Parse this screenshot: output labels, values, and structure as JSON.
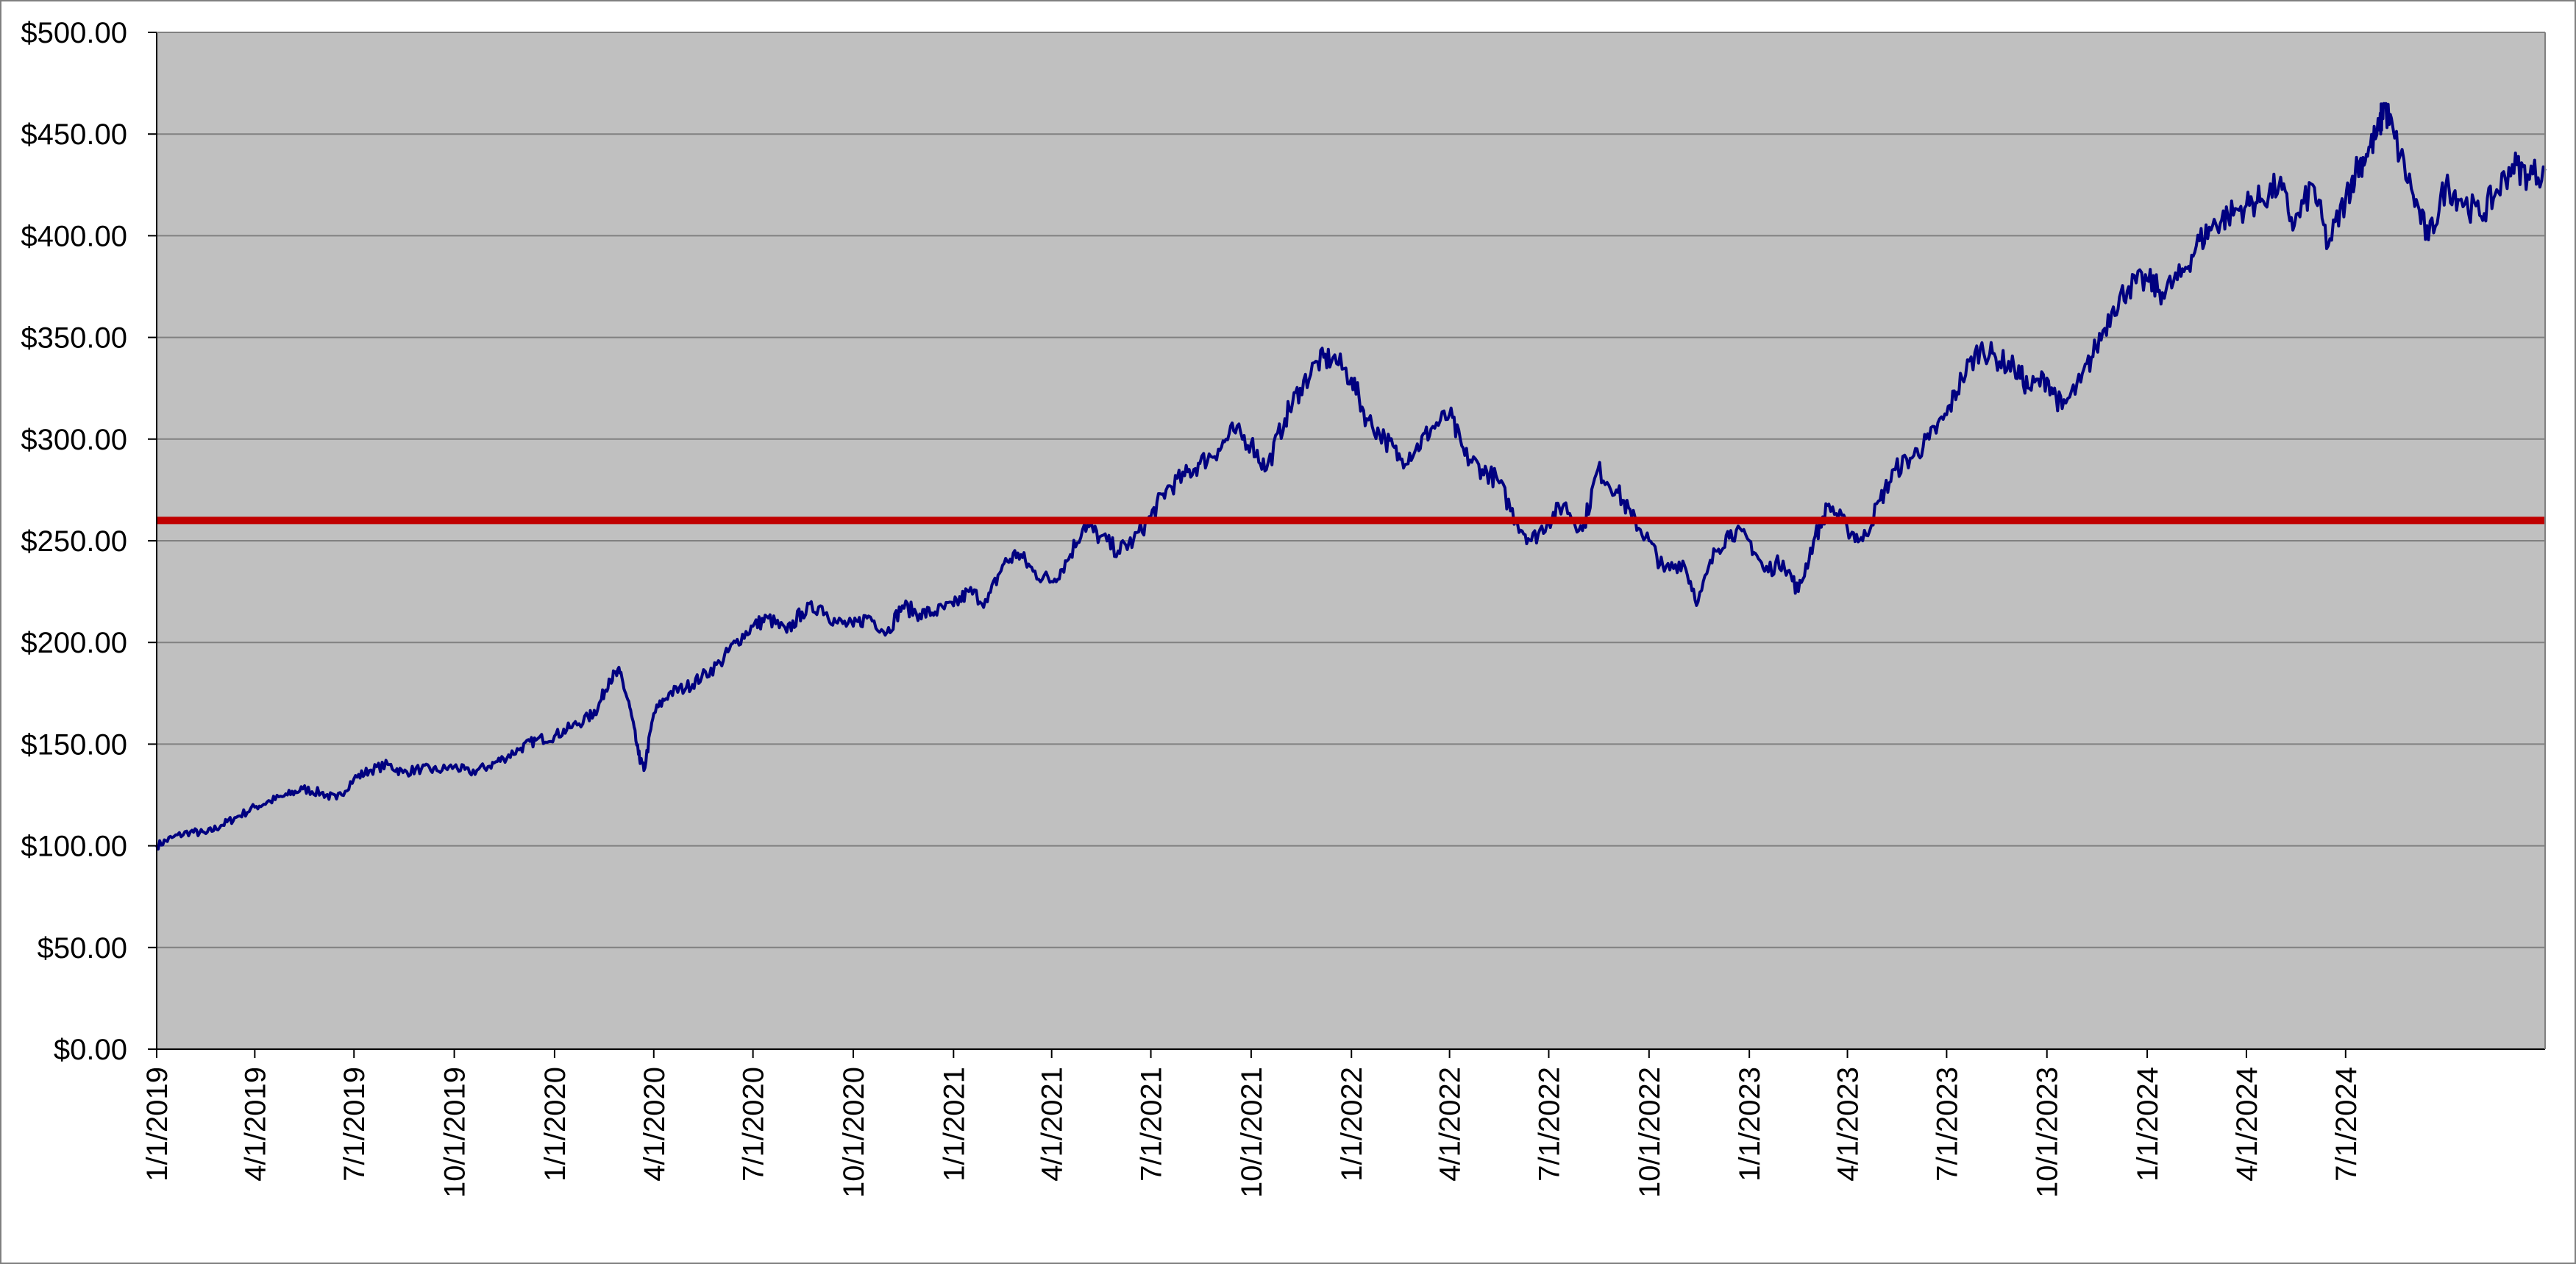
{
  "chart_data": {
    "type": "line",
    "title": "",
    "xlabel": "",
    "ylabel": "",
    "x_range": [
      "1/1/2019",
      "12/31/2024"
    ],
    "ylim": [
      0,
      500
    ],
    "y_ticks": [
      0,
      50,
      100,
      150,
      200,
      250,
      300,
      350,
      400,
      450,
      500
    ],
    "y_tick_labels": [
      "$0.00",
      "$50.00",
      "$100.00",
      "$150.00",
      "$200.00",
      "$250.00",
      "$300.00",
      "$350.00",
      "$400.00",
      "$450.00",
      "$500.00"
    ],
    "x_tick_labels": [
      "1/1/2019",
      "4/1/2019",
      "7/1/2019",
      "10/1/2019",
      "1/1/2020",
      "4/1/2020",
      "7/1/2020",
      "10/1/2020",
      "1/1/2021",
      "4/1/2021",
      "7/1/2021",
      "10/1/2021",
      "1/1/2022",
      "4/1/2022",
      "7/1/2022",
      "10/1/2022",
      "1/1/2023",
      "4/1/2023",
      "7/1/2023",
      "10/1/2023",
      "1/1/2024",
      "4/1/2024",
      "7/1/2024"
    ],
    "grid": true,
    "legend": "none",
    "colors": {
      "plot_background": "#C0C0C0",
      "series": "#000080",
      "reference": "#C00000",
      "gridline": "#808080"
    },
    "series": [
      {
        "x": [
          "2019-01-01",
          "2019-01-15",
          "2019-02-01",
          "2019-02-15",
          "2019-03-01",
          "2019-03-15",
          "2019-04-01",
          "2019-04-15",
          "2019-05-01",
          "2019-05-15",
          "2019-06-01",
          "2019-06-15",
          "2019-07-01",
          "2019-07-15",
          "2019-08-01",
          "2019-08-15",
          "2019-09-01",
          "2019-09-15",
          "2019-10-01",
          "2019-10-15",
          "2019-11-01",
          "2019-11-15",
          "2019-12-01",
          "2019-12-15",
          "2020-01-01",
          "2020-01-15",
          "2020-02-01",
          "2020-02-10",
          "2020-02-20",
          "2020-03-01",
          "2020-03-10",
          "2020-03-18",
          "2020-03-23",
          "2020-04-01",
          "2020-04-15",
          "2020-05-01",
          "2020-05-15",
          "2020-06-01",
          "2020-06-15",
          "2020-07-01",
          "2020-07-15",
          "2020-08-01",
          "2020-08-15",
          "2020-09-01",
          "2020-09-15",
          "2020-10-01",
          "2020-10-15",
          "2020-11-01",
          "2020-11-15",
          "2020-12-01",
          "2020-12-15",
          "2021-01-01",
          "2021-01-15",
          "2021-02-01",
          "2021-02-15",
          "2021-03-01",
          "2021-03-15",
          "2021-04-01",
          "2021-04-15",
          "2021-05-01",
          "2021-05-15",
          "2021-06-01",
          "2021-06-15",
          "2021-07-01",
          "2021-07-15",
          "2021-08-01",
          "2021-08-15",
          "2021-09-01",
          "2021-09-15",
          "2021-10-01",
          "2021-10-15",
          "2021-11-01",
          "2021-11-15",
          "2021-12-01",
          "2021-12-15",
          "2022-01-01",
          "2022-01-15",
          "2022-02-01",
          "2022-02-15",
          "2022-03-01",
          "2022-03-15",
          "2022-04-01",
          "2022-04-15",
          "2022-05-01",
          "2022-05-15",
          "2022-06-01",
          "2022-06-15",
          "2022-07-01",
          "2022-07-15",
          "2022-08-01",
          "2022-08-15",
          "2022-09-01",
          "2022-09-15",
          "2022-10-01",
          "2022-10-15",
          "2022-11-01",
          "2022-11-15",
          "2022-12-01",
          "2022-12-15",
          "2023-01-01",
          "2023-01-15",
          "2023-02-01",
          "2023-02-15",
          "2023-03-01",
          "2023-03-15",
          "2023-04-01",
          "2023-04-15",
          "2023-05-01",
          "2023-05-15",
          "2023-06-01",
          "2023-06-15",
          "2023-07-01",
          "2023-07-15",
          "2023-08-01",
          "2023-08-15",
          "2023-09-01",
          "2023-09-15",
          "2023-10-01",
          "2023-10-15",
          "2023-11-01",
          "2023-11-15",
          "2023-12-01",
          "2023-12-15",
          "2024-01-01",
          "2024-01-15",
          "2024-02-01",
          "2024-02-15",
          "2024-03-01",
          "2024-03-15",
          "2024-04-01",
          "2024-04-15",
          "2024-05-01",
          "2024-05-15",
          "2024-06-01",
          "2024-06-15",
          "2024-07-01",
          "2024-07-10",
          "2024-07-20",
          "2024-08-01",
          "2024-08-05",
          "2024-08-15",
          "2024-09-01",
          "2024-09-15",
          "2024-10-01",
          "2024-10-15",
          "2024-11-01",
          "2024-11-15",
          "2024-12-01",
          "2024-12-15",
          "2024-12-31"
        ],
        "y": [
          100,
          104,
          107,
          106,
          110,
          114,
          119,
          122,
          125,
          128,
          126,
          123,
          133,
          137,
          140,
          136,
          138,
          137,
          139,
          136,
          139,
          143,
          148,
          152,
          154,
          158,
          163,
          168,
          182,
          185,
          168,
          145,
          137,
          165,
          175,
          178,
          183,
          190,
          200,
          208,
          212,
          205,
          215,
          218,
          210,
          208,
          213,
          205,
          218,
          214,
          215,
          218,
          225,
          220,
          238,
          244,
          235,
          230,
          240,
          258,
          252,
          245,
          250,
          262,
          275,
          282,
          288,
          295,
          304,
          298,
          285,
          310,
          325,
          338,
          340,
          330,
          310,
          300,
          290,
          295,
          305,
          312,
          292,
          285,
          280,
          260,
          250,
          260,
          268,
          255,
          285,
          275,
          262,
          250,
          235,
          240,
          220,
          245,
          255,
          250,
          235,
          240,
          225,
          250,
          268,
          256,
          250,
          270,
          285,
          292,
          300,
          312,
          330,
          345,
          340,
          335,
          325,
          330,
          315,
          328,
          345,
          365,
          375,
          378,
          372,
          380,
          395,
          405,
          410,
          415,
          418,
          425,
          405,
          425,
          395,
          418,
          432,
          440,
          452,
          465,
          448,
          420,
          398,
          425,
          418,
          410,
          420,
          435,
          430,
          432
        ]
      }
    ],
    "reference_lines": [
      {
        "y": 260
      }
    ]
  }
}
